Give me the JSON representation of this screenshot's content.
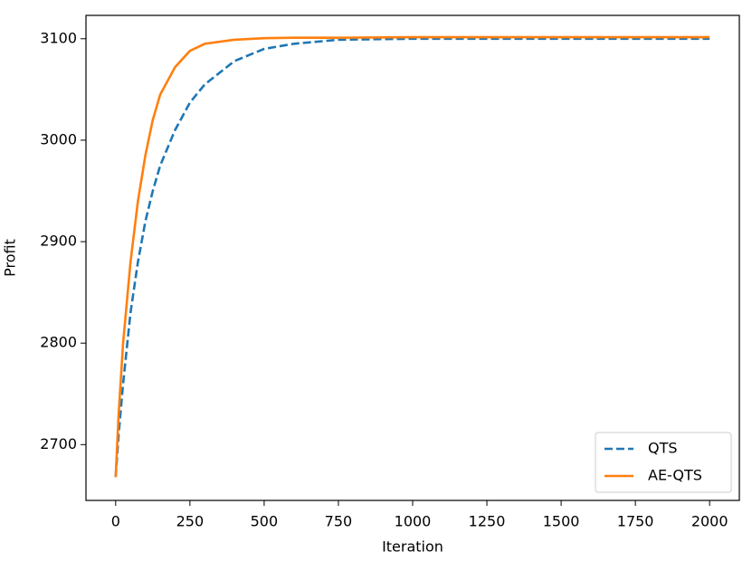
{
  "chart_data": {
    "type": "line",
    "x_label": "Iteration",
    "y_label": "Profit",
    "x": [
      0,
      10,
      25,
      50,
      75,
      100,
      125,
      150,
      200,
      250,
      300,
      400,
      500,
      600,
      750,
      1000,
      1500,
      2000
    ],
    "series": [
      {
        "name": "QTS",
        "color": "#1f77b4",
        "dash": true,
        "values": [
          2668,
          2710,
          2760,
          2830,
          2880,
          2920,
          2950,
          2975,
          3010,
          3037,
          3055,
          3078,
          3090,
          3095,
          3099,
          3100,
          3100,
          3100
        ]
      },
      {
        "name": "AE-QTS",
        "color": "#ff7f0e",
        "dash": false,
        "values": [
          2668,
          2730,
          2800,
          2880,
          2940,
          2985,
          3020,
          3045,
          3072,
          3088,
          3095,
          3099,
          3100.5,
          3101,
          3101,
          3101.5,
          3101.5,
          3101.5
        ]
      }
    ],
    "xlim": [
      -100,
      2100
    ],
    "ylim": [
      2645,
      3123
    ],
    "xticks": [
      0,
      250,
      500,
      750,
      1000,
      1250,
      1500,
      1750,
      2000
    ],
    "yticks": [
      2700,
      2800,
      2900,
      3000,
      3100
    ],
    "grid": false,
    "legend": "lower right"
  }
}
